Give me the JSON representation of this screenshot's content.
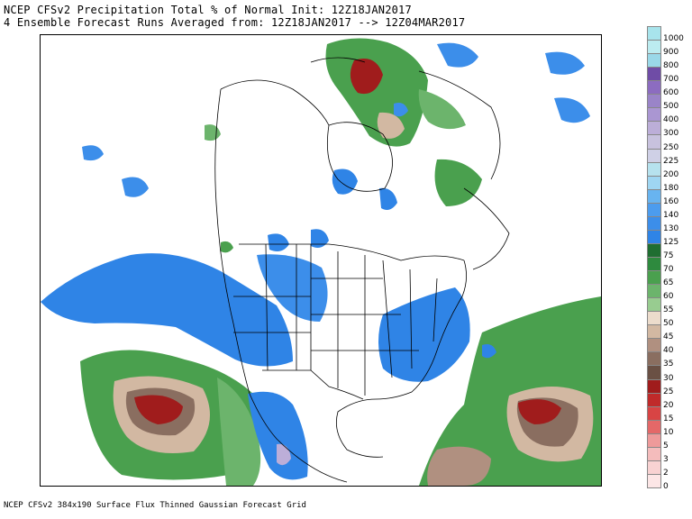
{
  "header": {
    "line1": "NCEP CFSv2 Precipitation Total % of Normal Init: 12Z18JAN2017",
    "line2": "4 Ensemble Forecast Runs Averaged from: 12Z18JAN2017 --> 12Z04MAR2017"
  },
  "footer": "NCEP CFSv2 384x190 Surface Flux Thinned Gaussian Forecast Grid",
  "legend": {
    "entries": [
      {
        "label": "1000",
        "color": "#a8e4ec"
      },
      {
        "label": "900",
        "color": "#bcecf0"
      },
      {
        "label": "800",
        "color": "#9ad8e8"
      },
      {
        "label": "700",
        "color": "#6f4ca6"
      },
      {
        "label": "600",
        "color": "#8c6cc0"
      },
      {
        "label": "500",
        "color": "#9a84c8"
      },
      {
        "label": "400",
        "color": "#aa96d2"
      },
      {
        "label": "300",
        "color": "#bcaed8"
      },
      {
        "label": "250",
        "color": "#c8c2de"
      },
      {
        "label": "225",
        "color": "#cfd0e6"
      },
      {
        "label": "200",
        "color": "#b6e2ee"
      },
      {
        "label": "180",
        "color": "#9fd6f2"
      },
      {
        "label": "160",
        "color": "#68b4f0"
      },
      {
        "label": "140",
        "color": "#4c9cee"
      },
      {
        "label": "130",
        "color": "#3c8eea"
      },
      {
        "label": "125",
        "color": "#2f84e6"
      },
      {
        "label": "75",
        "color": "#1f6e31"
      },
      {
        "label": "70",
        "color": "#2e8a3e"
      },
      {
        "label": "65",
        "color": "#4aa04e"
      },
      {
        "label": "60",
        "color": "#6cb46c"
      },
      {
        "label": "55",
        "color": "#98cc90"
      },
      {
        "label": "50",
        "color": "#ecdccc"
      },
      {
        "label": "45",
        "color": "#d2b8a2"
      },
      {
        "label": "40",
        "color": "#b09080"
      },
      {
        "label": "35",
        "color": "#8a6e60"
      },
      {
        "label": "30",
        "color": "#6a5044"
      },
      {
        "label": "25",
        "color": "#a01c1c"
      },
      {
        "label": "20",
        "color": "#c02a2a"
      },
      {
        "label": "15",
        "color": "#d84444"
      },
      {
        "label": "10",
        "color": "#e46868"
      },
      {
        "label": "5",
        "color": "#ee9a9a"
      },
      {
        "label": "3",
        "color": "#f4bcbc"
      },
      {
        "label": "2",
        "color": "#f8d2d2"
      },
      {
        "label": "0",
        "color": "#fce6e6"
      }
    ]
  }
}
